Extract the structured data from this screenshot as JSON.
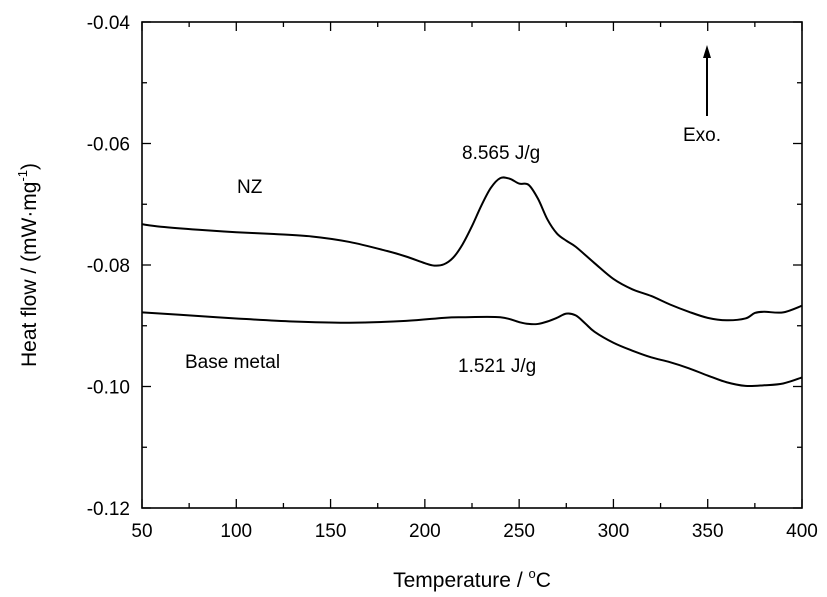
{
  "chart_data": {
    "type": "line",
    "xlabel": "Temperature / °C",
    "xlabel_parts": {
      "main": "Temperature / ",
      "sup": "o",
      "unit": "C"
    },
    "ylabel": "Heat flow / (mW·mg-1)",
    "ylabel_parts": {
      "main": "Heat flow / (mW·mg",
      "sup": "-1",
      "close": ")"
    },
    "xlim": [
      50,
      400
    ],
    "ylim": [
      -0.12,
      -0.04
    ],
    "xticks": [
      50,
      100,
      150,
      200,
      250,
      300,
      350,
      400
    ],
    "yticks": [
      -0.12,
      -0.1,
      -0.08,
      -0.06,
      -0.04
    ],
    "ytick_labels": [
      "-0.12",
      "-0.10",
      "-0.08",
      "-0.06",
      "-0.04"
    ],
    "grid": false,
    "series": [
      {
        "name": "NZ",
        "x": [
          50,
          60,
          80,
          100,
          120,
          140,
          160,
          180,
          190,
          200,
          205,
          210,
          215,
          220,
          225,
          230,
          235,
          240,
          245,
          250,
          255,
          260,
          265,
          270,
          275,
          280,
          290,
          300,
          310,
          320,
          330,
          340,
          350,
          360,
          370,
          375,
          380,
          390,
          400
        ],
        "y": [
          -0.0733,
          -0.0737,
          -0.0742,
          -0.0746,
          -0.0749,
          -0.0753,
          -0.0762,
          -0.0777,
          -0.0786,
          -0.0797,
          -0.0801,
          -0.0799,
          -0.0788,
          -0.0766,
          -0.0736,
          -0.0702,
          -0.0673,
          -0.0657,
          -0.0658,
          -0.0666,
          -0.0668,
          -0.0691,
          -0.0725,
          -0.0748,
          -0.076,
          -0.077,
          -0.0797,
          -0.0823,
          -0.084,
          -0.0851,
          -0.0865,
          -0.0877,
          -0.0887,
          -0.0891,
          -0.0888,
          -0.0879,
          -0.0877,
          -0.0878,
          -0.0867
        ]
      },
      {
        "name": "Base metal",
        "x": [
          50,
          70,
          100,
          130,
          160,
          190,
          210,
          220,
          240,
          250,
          255,
          260,
          265,
          270,
          275,
          280,
          285,
          290,
          300,
          310,
          320,
          330,
          340,
          350,
          360,
          370,
          380,
          390,
          400
        ],
        "y": [
          -0.0878,
          -0.0882,
          -0.0888,
          -0.0893,
          -0.0895,
          -0.0892,
          -0.0887,
          -0.0886,
          -0.0886,
          -0.0894,
          -0.0897,
          -0.0897,
          -0.0893,
          -0.0887,
          -0.088,
          -0.0883,
          -0.0896,
          -0.091,
          -0.0928,
          -0.0941,
          -0.0952,
          -0.096,
          -0.097,
          -0.0982,
          -0.0993,
          -0.0999,
          -0.0998,
          -0.0995,
          -0.0985
        ]
      }
    ],
    "annotations": {
      "nz_label": "NZ",
      "base_label": "Base metal",
      "nz_enthalpy": "8.565 J/g",
      "base_enthalpy": "1.521 J/g",
      "exo": "Exo."
    }
  }
}
